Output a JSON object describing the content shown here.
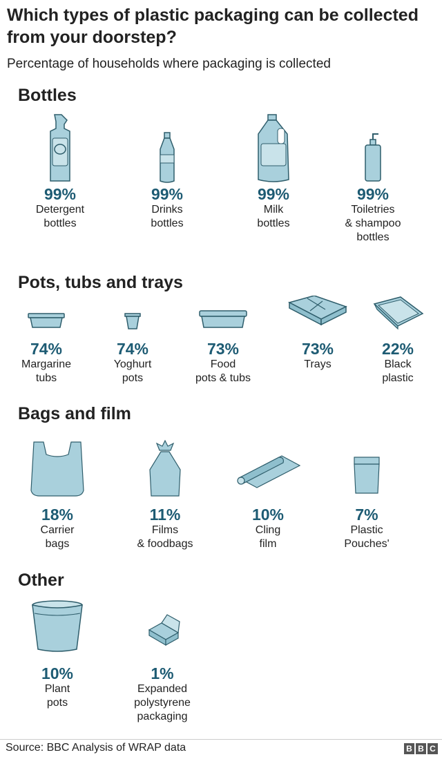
{
  "title": "Which types of plastic packaging can be collected from your doorstep?",
  "subtitle": "Percentage of households where packaging is collected",
  "sections": [
    {
      "heading": "Bottles",
      "items": [
        {
          "pct": "99%",
          "label": "Detergent\nbottles",
          "icon": "detergent-bottle-icon"
        },
        {
          "pct": "99%",
          "label": "Drinks\nbottles",
          "icon": "drinks-bottle-icon"
        },
        {
          "pct": "99%",
          "label": "Milk\nbottles",
          "icon": "milk-bottle-icon"
        },
        {
          "pct": "99%",
          "label": "Toiletries\n& shampoo\nbottles",
          "icon": "pump-bottle-icon"
        }
      ]
    },
    {
      "heading": "Pots, tubs and trays",
      "items": [
        {
          "pct": "74%",
          "label": "Margarine\ntubs",
          "icon": "margarine-tub-icon"
        },
        {
          "pct": "74%",
          "label": "Yoghurt\npots",
          "icon": "yoghurt-pot-icon"
        },
        {
          "pct": "73%",
          "label": "Food\npots & tubs",
          "icon": "food-tub-icon"
        },
        {
          "pct": "73%",
          "label": "Trays",
          "icon": "tray-icon"
        },
        {
          "pct": "22%",
          "label": "Black\nplastic",
          "icon": "black-plastic-tray-icon"
        }
      ]
    },
    {
      "heading": "Bags and film",
      "items": [
        {
          "pct": "18%",
          "label": "Carrier\nbags",
          "icon": "carrier-bag-icon"
        },
        {
          "pct": "11%",
          "label": "Films\n& foodbags",
          "icon": "food-bag-icon"
        },
        {
          "pct": "10%",
          "label": "Cling\nfilm",
          "icon": "cling-film-icon"
        },
        {
          "pct": "7%",
          "label": "Plastic\nPouches'",
          "icon": "pouch-icon"
        }
      ]
    },
    {
      "heading": "Other",
      "items": [
        {
          "pct": "10%",
          "label": "Plant\npots",
          "icon": "plant-pot-icon"
        },
        {
          "pct": "1%",
          "label": "Expanded\npolystyrene\npackaging",
          "icon": "polystyrene-box-icon"
        }
      ]
    }
  ],
  "chart_data": {
    "type": "table",
    "title": "Which types of plastic packaging can be collected from your doorstep?",
    "subtitle": "Percentage of households where packaging is collected",
    "categories": [
      "Detergent bottles",
      "Drinks bottles",
      "Milk bottles",
      "Toiletries & shampoo bottles",
      "Margarine tubs",
      "Yoghurt pots",
      "Food pots & tubs",
      "Trays",
      "Black plastic",
      "Carrier bags",
      "Films & foodbags",
      "Cling film",
      "Plastic Pouches'",
      "Plant pots",
      "Expanded polystyrene packaging"
    ],
    "groups": [
      "Bottles",
      "Bottles",
      "Bottles",
      "Bottles",
      "Pots, tubs and trays",
      "Pots, tubs and trays",
      "Pots, tubs and trays",
      "Pots, tubs and trays",
      "Pots, tubs and trays",
      "Bags and film",
      "Bags and film",
      "Bags and film",
      "Bags and film",
      "Other",
      "Other"
    ],
    "values": [
      99,
      99,
      99,
      99,
      74,
      74,
      73,
      73,
      22,
      18,
      11,
      10,
      7,
      10,
      1
    ],
    "unit": "%"
  },
  "colors": {
    "accent": "#1d5b73",
    "icon_fill": "#a9d0dc",
    "icon_stroke": "#2e5d6b"
  },
  "footer": {
    "source": "Source: BBC Analysis of WRAP data",
    "logo": [
      "B",
      "B",
      "C"
    ]
  }
}
